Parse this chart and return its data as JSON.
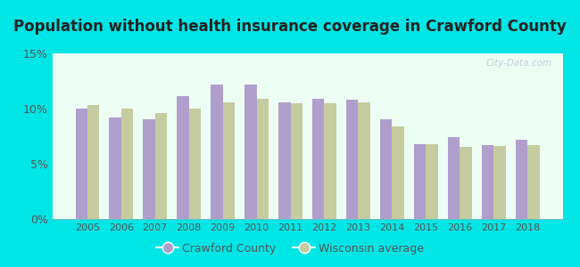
{
  "title": "Population without health insurance coverage in Crawford County",
  "years": [
    2005,
    2006,
    2007,
    2008,
    2009,
    2010,
    2011,
    2012,
    2013,
    2014,
    2015,
    2016,
    2017,
    2018
  ],
  "crawford": [
    10.0,
    9.2,
    9.0,
    11.1,
    12.2,
    12.2,
    10.6,
    10.9,
    10.8,
    9.0,
    6.8,
    7.4,
    6.7,
    7.2
  ],
  "wisconsin": [
    10.3,
    10.0,
    9.6,
    10.0,
    10.6,
    10.9,
    10.5,
    10.5,
    10.6,
    8.4,
    6.8,
    6.5,
    6.6,
    6.7
  ],
  "crawford_color": "#b09fcc",
  "wisconsin_color": "#c5cc9f",
  "background_outer": "#00e5e5",
  "background_inner_top": "#edfff5",
  "background_inner_bottom": "#dff5e8",
  "ylim": [
    0,
    15
  ],
  "yticks": [
    0,
    5,
    10,
    15
  ],
  "ytick_labels": [
    "0%",
    "5%",
    "10%",
    "15%"
  ],
  "legend_crawford": "Crawford County",
  "legend_wisconsin": "Wisconsin average",
  "title_fontsize": 12,
  "bar_width": 0.35,
  "watermark": "City-Data.com",
  "tick_color": "#555555",
  "title_color": "#222222"
}
